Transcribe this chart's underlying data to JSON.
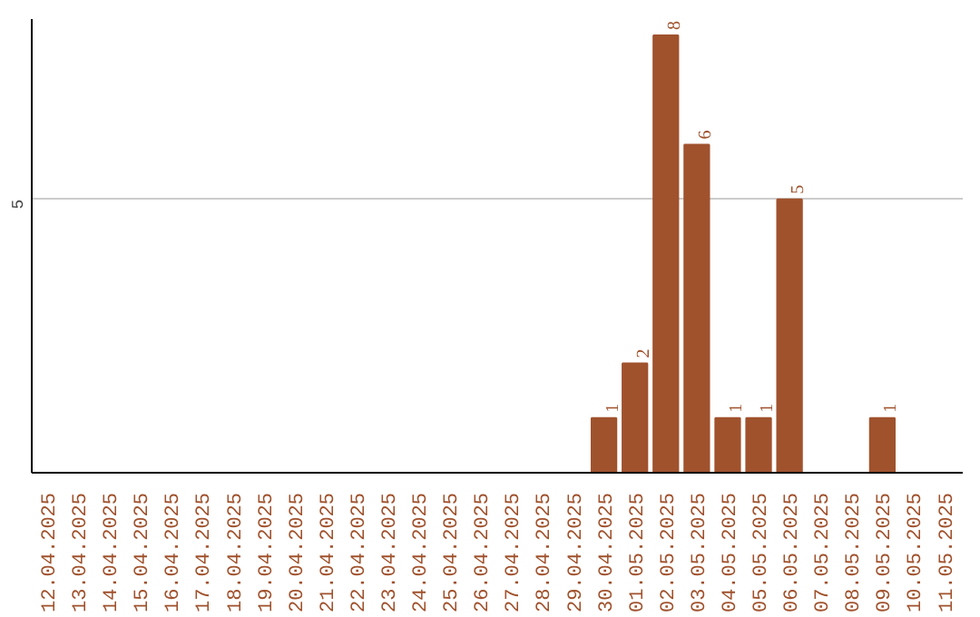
{
  "chart_data": {
    "type": "bar",
    "categories": [
      "12.04.2025",
      "13.04.2025",
      "14.04.2025",
      "15.04.2025",
      "16.04.2025",
      "17.04.2025",
      "18.04.2025",
      "19.04.2025",
      "20.04.2025",
      "21.04.2025",
      "22.04.2025",
      "23.04.2025",
      "24.04.2025",
      "25.04.2025",
      "26.04.2025",
      "27.04.2025",
      "28.04.2025",
      "29.04.2025",
      "30.04.2025",
      "01.05.2025",
      "02.05.2025",
      "03.05.2025",
      "04.05.2025",
      "05.05.2025",
      "06.05.2025",
      "07.05.2025",
      "08.05.2025",
      "09.05.2025",
      "10.05.2025",
      "11.05.2025"
    ],
    "values": [
      null,
      null,
      null,
      null,
      null,
      null,
      null,
      null,
      null,
      null,
      null,
      null,
      null,
      null,
      null,
      null,
      null,
      null,
      1,
      2,
      8,
      6,
      1,
      1,
      5,
      null,
      null,
      1,
      null,
      null
    ],
    "color": "#a0522d",
    "ylim": [
      0,
      8.3
    ],
    "yticks": [
      5
    ],
    "grid": "y",
    "data_labels": true
  }
}
